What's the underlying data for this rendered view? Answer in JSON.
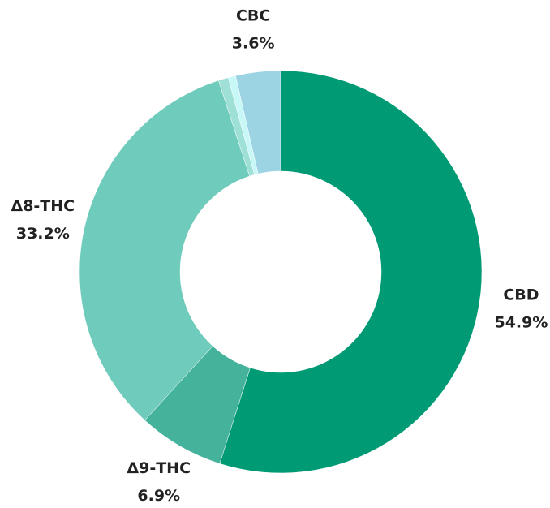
{
  "chart_data": {
    "type": "donut",
    "categories": [
      "CBD",
      "Δ9-THC",
      "Δ8-THC",
      null,
      null,
      "CBC"
    ],
    "values": [
      54.9,
      6.9,
      33.2,
      0.8,
      0.6,
      3.6
    ],
    "value_labels": [
      "54.9%",
      "6.9%",
      "33.2%",
      null,
      null,
      "3.6%"
    ],
    "colors": [
      "#009a74",
      "#45b39b",
      "#6fcbbb",
      "#9fe0d6",
      "#c8f7f7",
      "#9dd4e3"
    ]
  }
}
